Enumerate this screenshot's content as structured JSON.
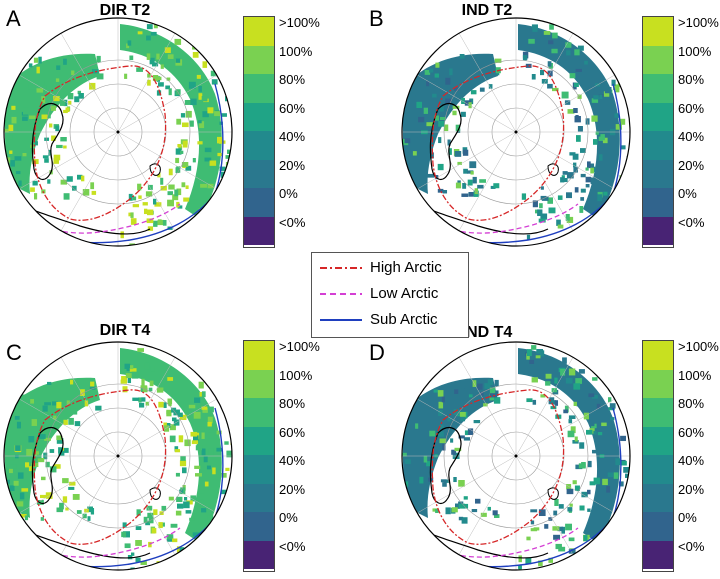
{
  "panels": [
    {
      "letter": "A",
      "title": "DIR T2"
    },
    {
      "letter": "B",
      "title": "IND T2"
    },
    {
      "letter": "C",
      "title": "DIR T4"
    },
    {
      "letter": "D",
      "title": "IND T4"
    }
  ],
  "colorbar": {
    "labels": [
      ">100%",
      "100%",
      "80%",
      "60%",
      "40%",
      "20%",
      "0%",
      "<0%"
    ],
    "colors": [
      "#c8e020",
      "#7ad151",
      "#3fbc73",
      "#20a486",
      "#228a8d",
      "#2a788e",
      "#31648d",
      "#482374"
    ]
  },
  "legend": {
    "items": [
      {
        "label": "High Arctic",
        "color": "#d62728",
        "style": "dash-dot"
      },
      {
        "label": "Low Arctic",
        "color": "#d43fd4",
        "style": "dashed"
      },
      {
        "label": "Sub Arctic",
        "color": "#1f3fbf",
        "style": "solid"
      }
    ]
  }
}
